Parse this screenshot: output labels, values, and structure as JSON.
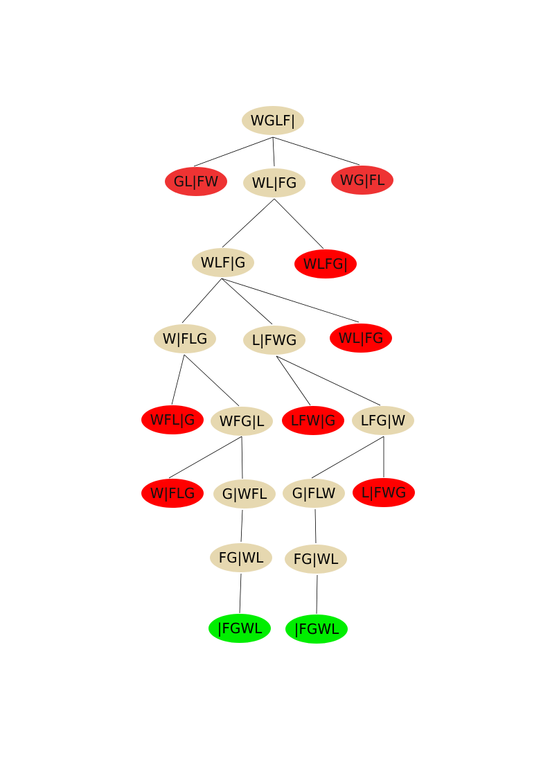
{
  "colors": {
    "state": "#e6d8b0",
    "invalid": "#ee3333",
    "invalid_bright": "#ff0000",
    "goal": "#00ee00",
    "edge": "#000000",
    "text": "#000000",
    "text_on_red": "#111111"
  },
  "nodes": [
    {
      "id": "n1",
      "label": "WGLF|",
      "kind": "state"
    },
    {
      "id": "n2",
      "label": "GL|FW",
      "kind": "invalid"
    },
    {
      "id": "n3",
      "label": "WL|FG",
      "kind": "state"
    },
    {
      "id": "n4",
      "label": "WG|FL",
      "kind": "invalid"
    },
    {
      "id": "n5",
      "label": "WLF|G",
      "kind": "state"
    },
    {
      "id": "n6",
      "label": "WLFG|",
      "kind": "invalid_bright"
    },
    {
      "id": "n7",
      "label": "W|FLG",
      "kind": "state"
    },
    {
      "id": "n8",
      "label": "L|FWG",
      "kind": "state"
    },
    {
      "id": "n9",
      "label": "WL|FG",
      "kind": "invalid_bright"
    },
    {
      "id": "n10",
      "label": "WFL|G",
      "kind": "invalid_bright"
    },
    {
      "id": "n11",
      "label": "WFG|L",
      "kind": "state"
    },
    {
      "id": "n12",
      "label": "LFW|G",
      "kind": "invalid_bright"
    },
    {
      "id": "n13",
      "label": "LFG|W",
      "kind": "state"
    },
    {
      "id": "n14",
      "label": "W|FLG",
      "kind": "invalid_bright"
    },
    {
      "id": "n15",
      "label": "G|WFL",
      "kind": "state"
    },
    {
      "id": "n16",
      "label": "G|FLW",
      "kind": "state"
    },
    {
      "id": "n17",
      "label": "L|FWG",
      "kind": "invalid_bright"
    },
    {
      "id": "n18",
      "label": "FG|WL",
      "kind": "state"
    },
    {
      "id": "n19",
      "label": "FG|WL",
      "kind": "state"
    },
    {
      "id": "n20",
      "label": "|FGWL",
      "kind": "goal"
    },
    {
      "id": "n21",
      "label": "|FGWL",
      "kind": "goal"
    }
  ],
  "edges": [
    [
      "n1",
      "n2"
    ],
    [
      "n1",
      "n3"
    ],
    [
      "n1",
      "n4"
    ],
    [
      "n3",
      "n5"
    ],
    [
      "n3",
      "n6"
    ],
    [
      "n5",
      "n7"
    ],
    [
      "n5",
      "n8"
    ],
    [
      "n5",
      "n9"
    ],
    [
      "n7",
      "n10"
    ],
    [
      "n7",
      "n11"
    ],
    [
      "n8",
      "n12"
    ],
    [
      "n8",
      "n13"
    ],
    [
      "n11",
      "n14"
    ],
    [
      "n11",
      "n15"
    ],
    [
      "n13",
      "n16"
    ],
    [
      "n13",
      "n17"
    ],
    [
      "n15",
      "n18"
    ],
    [
      "n16",
      "n19"
    ],
    [
      "n18",
      "n20"
    ],
    [
      "n19",
      "n21"
    ]
  ]
}
